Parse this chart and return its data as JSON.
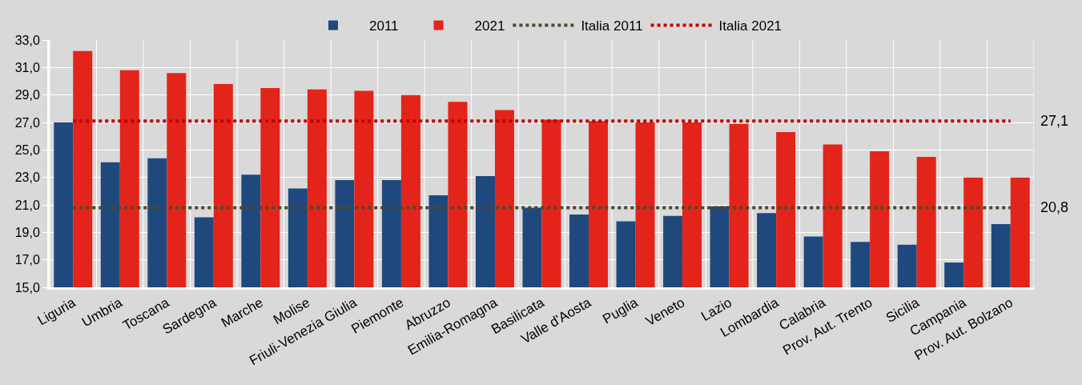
{
  "chart_data": {
    "type": "bar",
    "categories": [
      "Liguria",
      "Umbria",
      "Toscana",
      "Sardegna",
      "Marche",
      "Molise",
      "Friuli-Venezia Giulia",
      "Piemonte",
      "Abruzzo",
      "Emilia-Romagna",
      "Basilicata",
      "Valle d'Aosta",
      "Puglia",
      "Veneto",
      "Lazio",
      "Lombardia",
      "Calabria",
      "Prov. Aut. Trento",
      "Sicilia",
      "Campania",
      "Prov. Aut. Bolzano"
    ],
    "series": [
      {
        "name": "2011",
        "color": "#1f497d",
        "values": [
          27.0,
          24.1,
          24.4,
          20.1,
          23.2,
          22.2,
          22.8,
          22.8,
          21.7,
          23.1,
          20.8,
          20.3,
          19.8,
          20.2,
          20.9,
          20.4,
          18.7,
          18.3,
          18.1,
          16.8,
          19.6
        ]
      },
      {
        "name": "2021",
        "color": "#e3241a",
        "values": [
          32.2,
          30.8,
          30.6,
          29.8,
          29.5,
          29.4,
          29.3,
          29.0,
          28.5,
          27.9,
          27.2,
          27.1,
          27.0,
          27.0,
          26.9,
          26.3,
          25.4,
          24.9,
          24.5,
          23.0,
          23.0
        ]
      },
      {
        "name": "Italia 2011",
        "type": "line",
        "color": "#4a4a2e",
        "line_style": "dotted",
        "marker": "none",
        "values": [
          20.8,
          20.8,
          20.8,
          20.8,
          20.8,
          20.8,
          20.8,
          20.8,
          20.8,
          20.8,
          20.8,
          20.8,
          20.8,
          20.8,
          20.8,
          20.8,
          20.8,
          20.8,
          20.8,
          20.8,
          20.8
        ]
      },
      {
        "name": "Italia 2021",
        "type": "line",
        "color": "#c00000",
        "line_style": "dotted",
        "marker": "none",
        "values": [
          27.1,
          27.1,
          27.1,
          27.1,
          27.1,
          27.1,
          27.1,
          27.1,
          27.1,
          27.1,
          27.1,
          27.1,
          27.1,
          27.1,
          27.1,
          27.1,
          27.1,
          27.1,
          27.1,
          27.1,
          27.1
        ]
      }
    ],
    "ylim": [
      15,
      33
    ],
    "yticks": [
      {
        "value": 15,
        "label": "15,0"
      },
      {
        "value": 17,
        "label": "17,0"
      },
      {
        "value": 19,
        "label": "19,0"
      },
      {
        "value": 21,
        "label": "21,0"
      },
      {
        "value": 23,
        "label": "23,0"
      },
      {
        "value": 25,
        "label": "25,0"
      },
      {
        "value": 27,
        "label": "27,0"
      },
      {
        "value": 29,
        "label": "29,0"
      },
      {
        "value": 31,
        "label": "31,0"
      },
      {
        "value": 33,
        "label": "33,0"
      }
    ],
    "annotations": [
      "27,1",
      "20,8"
    ],
    "grid": true,
    "legend": "top"
  }
}
